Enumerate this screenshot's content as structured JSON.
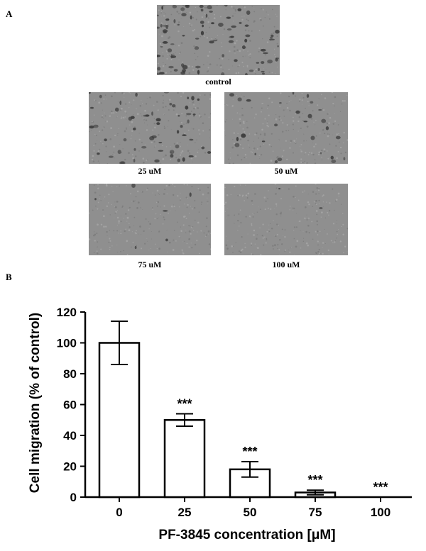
{
  "panel_a": {
    "letter": "A",
    "images": [
      {
        "label": "control",
        "cell_density": 0.95
      },
      {
        "label": "25 uM",
        "cell_density": 0.6
      },
      {
        "label": "50 uM",
        "cell_density": 0.3
      },
      {
        "label": "75 uM",
        "cell_density": 0.07
      },
      {
        "label": "100 uM",
        "cell_density": 0.02
      }
    ]
  },
  "panel_b": {
    "letter": "B"
  },
  "chart_data": {
    "type": "bar",
    "categories": [
      "0",
      "25",
      "50",
      "75",
      "100"
    ],
    "values": [
      100,
      50,
      18,
      3,
      0
    ],
    "errors": [
      14,
      4,
      5,
      1.5,
      0
    ],
    "annotations": [
      "",
      "***",
      "***",
      "***",
      "***"
    ],
    "xlabel": "PF-3845 concentration [μM]",
    "ylabel": "Cell migration (% of control)",
    "ylim": [
      0,
      120
    ],
    "yticks": [
      0,
      20,
      40,
      60,
      80,
      100,
      120
    ],
    "grid": false,
    "bar_color": "#ffffff",
    "edge_color": "#000000"
  }
}
